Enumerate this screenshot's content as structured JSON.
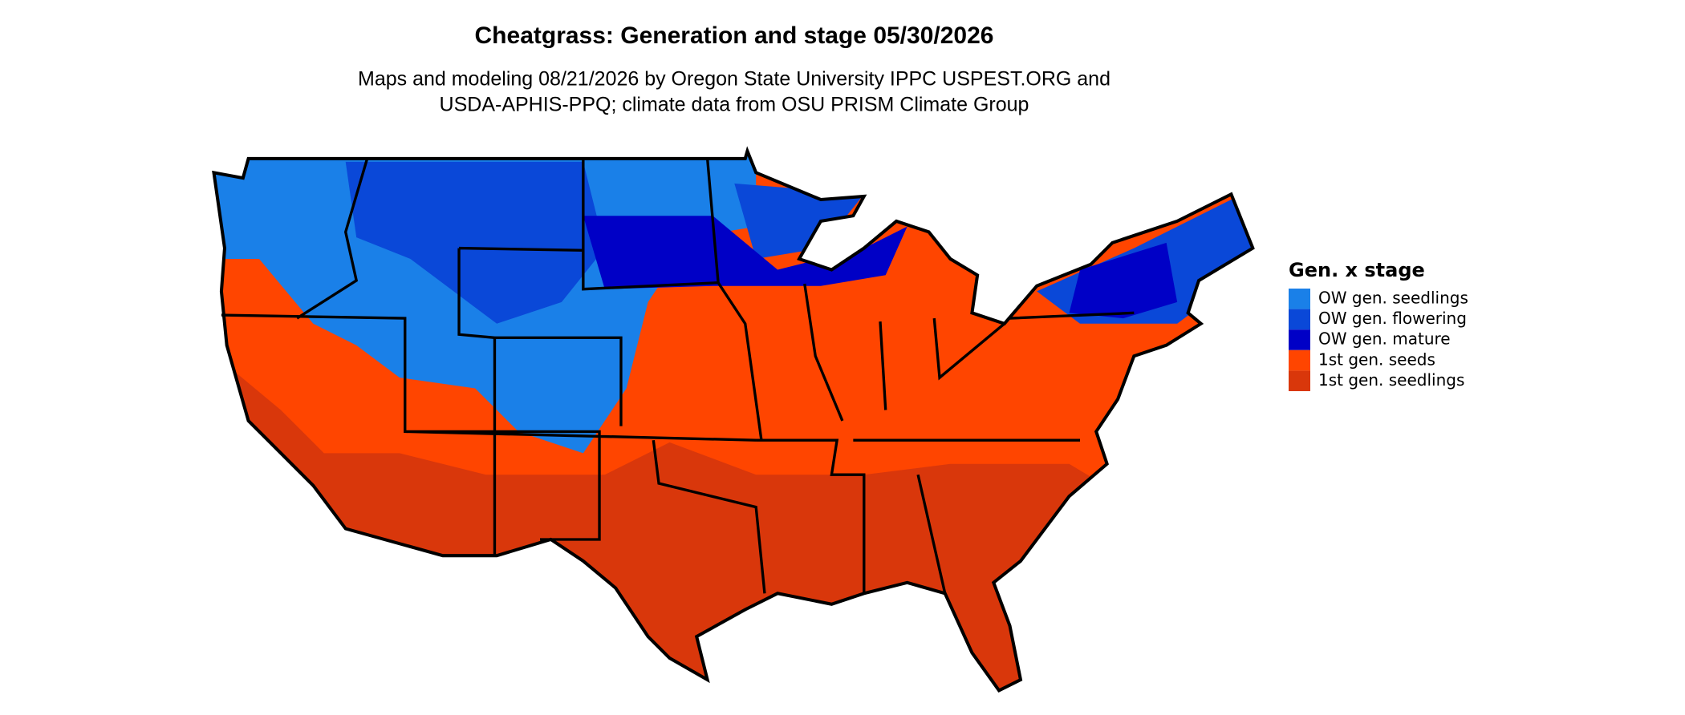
{
  "header": {
    "title": "Cheatgrass: Generation and stage 05/30/2026",
    "subtitle_lines": [
      "Maps and modeling 08/21/2026 by Oregon State University IPPC USPEST.ORG and",
      "USDA-APHIS-PPQ; climate data from OSU PRISM Climate Group"
    ]
  },
  "legend": {
    "title": "Gen. x stage",
    "items": [
      {
        "label": "OW gen. seedlings",
        "color": "#1a80e8"
      },
      {
        "label": "OW gen. flowering",
        "color": "#0a48d8"
      },
      {
        "label": "OW gen. mature",
        "color": "#0000c6"
      },
      {
        "label": "1st gen. seeds",
        "color": "#ff4500"
      },
      {
        "label": "1st gen. seedlings",
        "color": "#d9370b"
      }
    ]
  }
}
